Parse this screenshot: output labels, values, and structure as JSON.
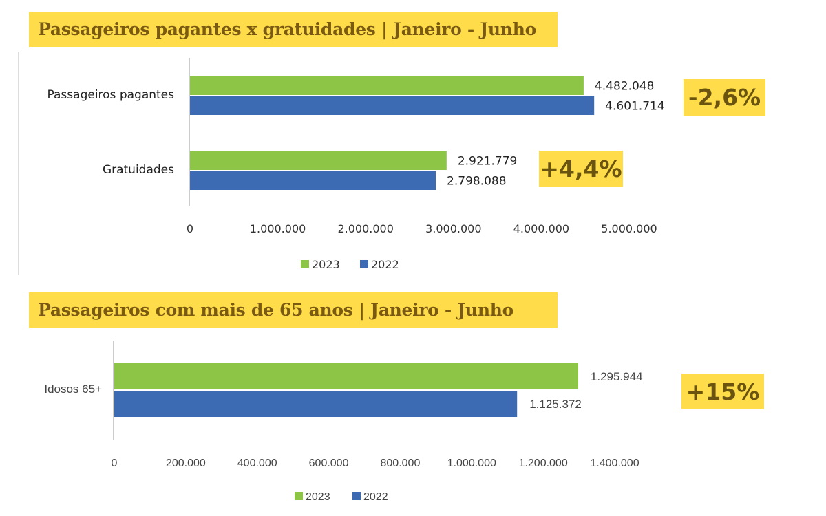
{
  "colors": {
    "series_2023": "#8DC646",
    "series_2022": "#3D6BB3",
    "highlight": "#FFDD4A"
  },
  "chart_data": [
    {
      "type": "bar",
      "orientation": "horizontal",
      "title": "Passageiros pagantes x gratuidades | Janeiro - Junho",
      "categories": [
        "Passageiros pagantes",
        "Gratuidades"
      ],
      "series": [
        {
          "name": "2023",
          "values": [
            4482048,
            2921779
          ],
          "labels": [
            "4.482.048",
            "2.921.779"
          ]
        },
        {
          "name": "2022",
          "values": [
            4601714,
            2798088
          ],
          "labels": [
            "4.601.714",
            "2.798.088"
          ]
        }
      ],
      "xlim": [
        0,
        5000000
      ],
      "xticks": [
        "0",
        "1.000.000",
        "2.000.000",
        "3.000.000",
        "4.000.000",
        "5.000.000"
      ],
      "legend": "bottom",
      "grid": false,
      "annotations": [
        "-2,6%",
        "+4,4%"
      ]
    },
    {
      "type": "bar",
      "orientation": "horizontal",
      "title": "Passageiros com mais de 65 anos | Janeiro - Junho",
      "categories": [
        "Idosos 65+"
      ],
      "series": [
        {
          "name": "2023",
          "values": [
            1295944
          ],
          "labels": [
            "1.295.944"
          ]
        },
        {
          "name": "2022",
          "values": [
            1125372
          ],
          "labels": [
            "1.125.372"
          ]
        }
      ],
      "xlim": [
        0,
        1400000
      ],
      "xticks": [
        "0",
        "200.000",
        "400.000",
        "600.000",
        "800.000",
        "1.000.000",
        "1.200.000",
        "1.400.000"
      ],
      "legend": "bottom",
      "grid": false,
      "annotations": [
        "+15%"
      ]
    }
  ]
}
